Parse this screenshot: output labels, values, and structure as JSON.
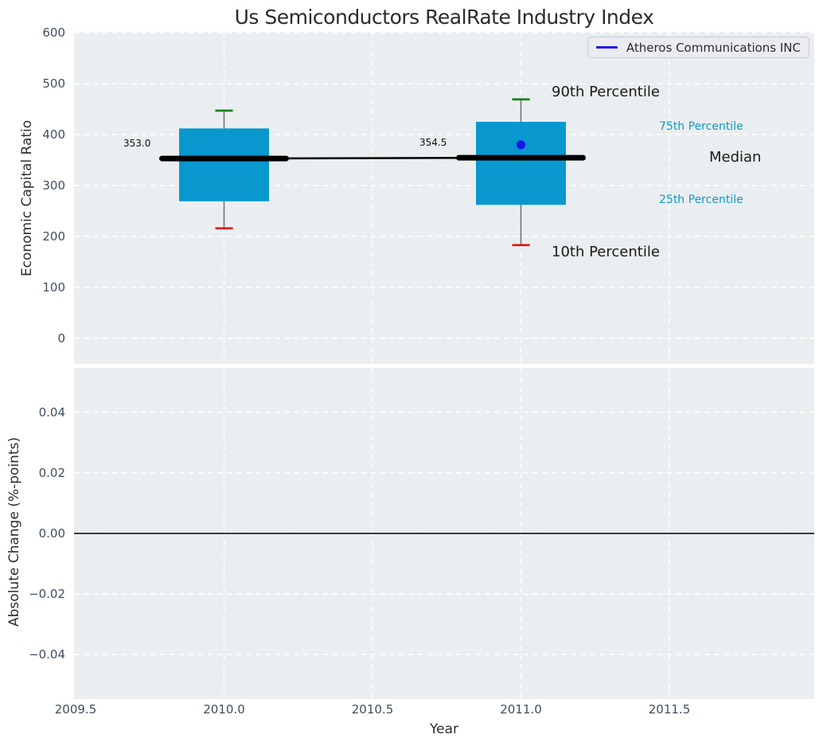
{
  "title": "Us Semiconductors RealRate Industry Index",
  "legend": {
    "label": "Atheros Communications INC"
  },
  "chart_data": {
    "type": "box",
    "title": "Us Semiconductors RealRate Industry Index",
    "xlabel": "Year",
    "x_axis": {
      "range": [
        2009.5,
        2012.0
      ],
      "ticks": [
        {
          "label": "2009.5",
          "year": 2009.5
        },
        {
          "label": "2010.0",
          "year": 2010.0
        },
        {
          "label": "2010.5",
          "year": 2010.5
        },
        {
          "label": "2011.0",
          "year": 2011.0
        },
        {
          "label": "2011.5",
          "year": 2011.5
        }
      ],
      "grid_years": [
        2010.0,
        2010.5,
        2011.0,
        2011.5
      ]
    },
    "top_subplot": {
      "ylabel": "Economic Capital Ratio",
      "ylim": [
        -47,
        600
      ],
      "grid": true,
      "y_ticks": [
        {
          "label": "600",
          "value": 600
        },
        {
          "label": "500",
          "value": 500
        },
        {
          "label": "400",
          "value": 400
        },
        {
          "label": "300",
          "value": 300
        },
        {
          "label": "200",
          "value": 200
        },
        {
          "label": "100",
          "value": 100
        },
        {
          "label": "0",
          "value": 0
        }
      ],
      "boxes": [
        {
          "year": 2010,
          "p10": 216,
          "p25": 269,
          "median": 353.0,
          "p75": 412,
          "p90": 447,
          "median_label": "353.0"
        },
        {
          "year": 2011,
          "p10": 183,
          "p25": 262,
          "median": 354.5,
          "p75": 425,
          "p90": 469,
          "median_label": "354.5"
        }
      ],
      "company_point": {
        "name": "Atheros Communications INC",
        "year": 2011,
        "value": 380
      }
    },
    "bottom_subplot": {
      "ylabel": "Absolute Change (%-points)",
      "ylim": [
        -0.0547,
        0.0547
      ],
      "grid": true,
      "zero_line": 0.0,
      "y_ticks": [
        {
          "label": "0.04",
          "value": 0.04
        },
        {
          "label": "0.02",
          "value": 0.02
        },
        {
          "label": "0.00",
          "value": 0.0
        },
        {
          "label": "−0.02",
          "value": -0.02
        },
        {
          "label": "−0.04",
          "value": -0.04
        }
      ]
    },
    "annotations": [
      {
        "id": "p90",
        "text": "90th Percentile",
        "style": "big"
      },
      {
        "id": "p75",
        "text": "75th Percentile",
        "style": "cyan"
      },
      {
        "id": "median",
        "text": "Median",
        "style": "big"
      },
      {
        "id": "p25",
        "text": "25th Percentile",
        "style": "cyan"
      },
      {
        "id": "p10",
        "text": "10th Percentile",
        "style": "big"
      },
      {
        "id": "m2010",
        "text": "353.0",
        "style": "small"
      },
      {
        "id": "m2011",
        "text": "354.5",
        "style": "small"
      }
    ],
    "colors": {
      "plot_bg": "#eaeef0",
      "grid": "#ffffff",
      "box_fill": "#0898ce",
      "median_line": "#000000",
      "p90_cap": "#008000",
      "p10_cap": "#ea0000",
      "whisker": "#6e6e6e",
      "company_point": "#1717e6",
      "legend_line": "#1717e6",
      "annotation_cyan": "#0e9ac9",
      "tick_text": "#3d5063",
      "zero_line": "#000000"
    }
  }
}
